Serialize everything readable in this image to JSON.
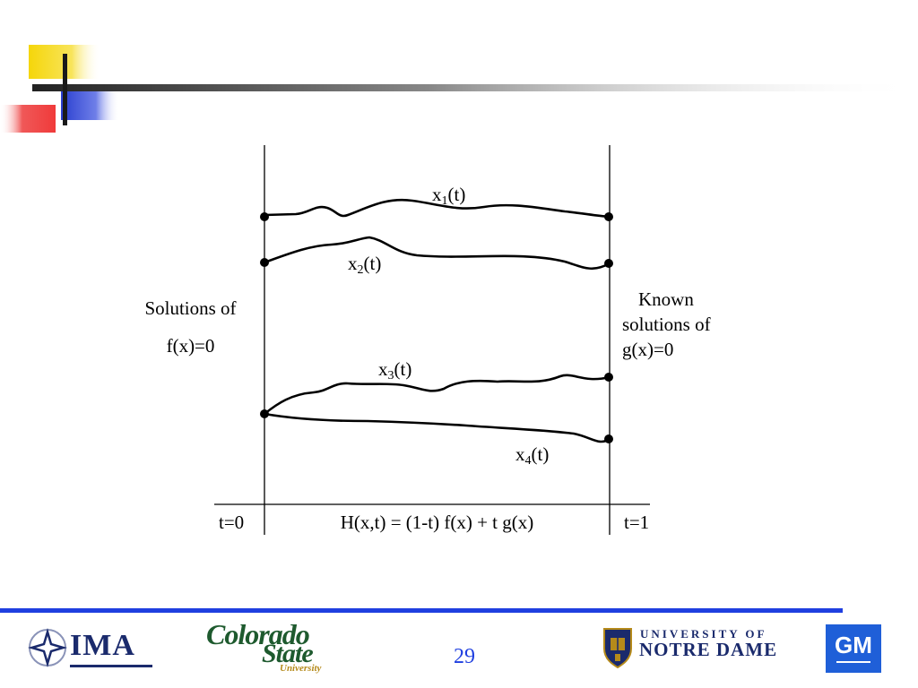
{
  "diagram": {
    "curve_labels": {
      "x1": {
        "base": "x",
        "sub": "1",
        "suffix": "(t)"
      },
      "x2": {
        "base": "x",
        "sub": "2",
        "suffix": "(t)"
      },
      "x3": {
        "base": "x",
        "sub": "3",
        "suffix": "(t)"
      },
      "x4": {
        "base": "x",
        "sub": "4",
        "suffix": "(t)"
      }
    },
    "left_label_line1": "Solutions of",
    "left_label_line2": "f(x)=0",
    "right_label_line1": "Known",
    "right_label_line2": "solutions of",
    "right_label_line3": "g(x)=0",
    "t_start": "t=0",
    "t_end": "t=1",
    "homotopy": "H(x,t) = (1-t) f(x) + t g(x)"
  },
  "footer": {
    "page_number": "29",
    "logos": {
      "ima": "IMA",
      "csu_line1": "Colorado",
      "csu_line2": "State",
      "csu_line3": "University",
      "nd_line1": "UNIVERSITY OF",
      "nd_line2": "NOTRE DAME",
      "gm": "GM"
    }
  },
  "colors": {
    "accent_blue": "#1f3fe0",
    "deco_yellow": "#f5d60a",
    "deco_red": "#f03a3a"
  }
}
